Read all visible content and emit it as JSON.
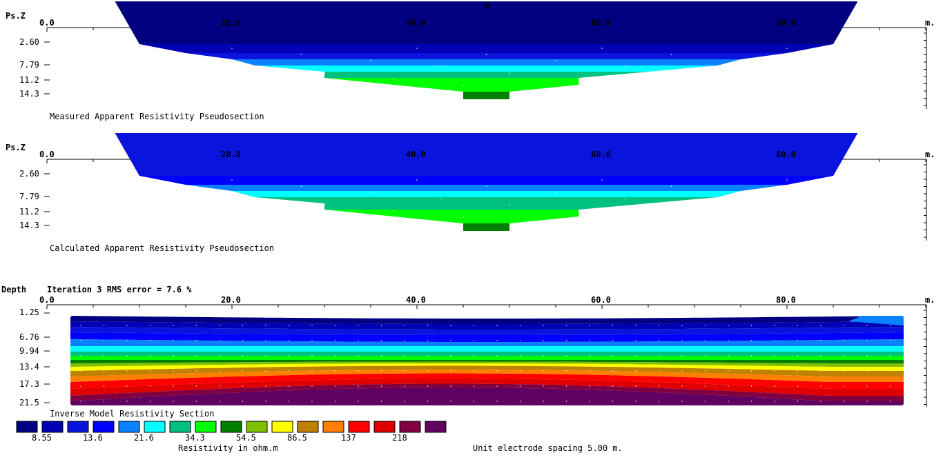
{
  "page_number": "9",
  "unit_m": "m.",
  "x_ticks": [
    "0.0",
    "20.0",
    "40.0",
    "60.0",
    "80.0"
  ],
  "panels": [
    {
      "axis_label": "Ps.Z",
      "caption": "Measured Apparent Resistivity Pseudosection",
      "y_ticks": [
        "2.60",
        "7.79",
        "11.2",
        "14.3"
      ]
    },
    {
      "axis_label": "Ps.Z",
      "caption": "Calculated Apparent Resistivity Pseudosection",
      "y_ticks": [
        "2.60",
        "7.79",
        "11.2",
        "14.3"
      ]
    },
    {
      "axis_label": "Depth",
      "iteration_text": "Iteration 3 RMS error = 7.6 %",
      "caption": "Inverse Model Resistivity Section",
      "y_ticks": [
        "1.25",
        "6.76",
        "9.94",
        "13.4",
        "17.3",
        "21.5"
      ]
    }
  ],
  "legend": {
    "colors": [
      "#000080",
      "#0000b4",
      "#0a14dc",
      "#0000ff",
      "#0a82ff",
      "#00ffff",
      "#00c080",
      "#00ff00",
      "#008000",
      "#80c000",
      "#ffff00",
      "#c08000",
      "#ff8000",
      "#ff0000",
      "#e00000",
      "#800040",
      "#600060"
    ],
    "labels": [
      "8.55",
      "13.6",
      "21.6",
      "34.3",
      "54.5",
      "86.5",
      "137",
      "218"
    ],
    "units_text": "Resistivity in ohm.m",
    "spacing_text": "Unit electrode spacing 5.00 m."
  },
  "chart_data": [
    {
      "type": "heatmap",
      "title": "Measured Apparent Resistivity Pseudosection",
      "ylabel": "Ps.Z",
      "xlim": [
        0,
        95
      ],
      "x_ticks": [
        0,
        20,
        40,
        60,
        80
      ],
      "y_ticks": [
        2.6,
        7.79,
        11.2,
        14.3
      ],
      "levels": [
        1,
        2,
        3,
        4,
        5,
        6,
        7,
        8,
        9
      ],
      "level_colors": [
        "#000080",
        "#0000b4",
        "#0a14dc",
        "#0a82ff",
        "#00ffff",
        "#00c080",
        "#00ff00",
        "#00ff00",
        "#008000"
      ],
      "level_x_ranges": [
        [
          7.5,
          87.5
        ],
        [
          10,
          85
        ],
        [
          15,
          80
        ],
        [
          20,
          75
        ],
        [
          22.5,
          72.5
        ],
        [
          30,
          65
        ],
        [
          30,
          57.5
        ],
        [
          37.5,
          57.5
        ],
        [
          45,
          50
        ]
      ]
    },
    {
      "type": "heatmap",
      "title": "Calculated Apparent Resistivity Pseudosection",
      "ylabel": "Ps.Z",
      "xlim": [
        0,
        95
      ],
      "x_ticks": [
        0,
        20,
        40,
        60,
        80
      ],
      "y_ticks": [
        2.6,
        7.79,
        11.2,
        14.3
      ],
      "levels": [
        1,
        2,
        3,
        4,
        5,
        6,
        7,
        8,
        9
      ],
      "level_colors": [
        "#0a14dc",
        "#0000ff",
        "#0a82ff",
        "#00ffff",
        "#00c080",
        "#00c080",
        "#00ff00",
        "#00ff00",
        "#008000"
      ],
      "level_x_ranges": [
        [
          7.5,
          87.5
        ],
        [
          10,
          85
        ],
        [
          15,
          80
        ],
        [
          20,
          75
        ],
        [
          22.5,
          72.5
        ],
        [
          30,
          65
        ],
        [
          30,
          57.5
        ],
        [
          37.5,
          57.5
        ],
        [
          45,
          50
        ]
      ]
    },
    {
      "type": "heatmap",
      "title": "Inverse Model Resistivity Section",
      "ylabel": "Depth",
      "xlim": [
        0,
        95
      ],
      "x_ticks": [
        0,
        20,
        40,
        60,
        80
      ],
      "y_ticks": [
        1.25,
        6.76,
        9.94,
        13.4,
        17.3,
        21.5
      ],
      "x_range": [
        2.5,
        92.5
      ],
      "depth_range": [
        0,
        22.5
      ]
    }
  ]
}
